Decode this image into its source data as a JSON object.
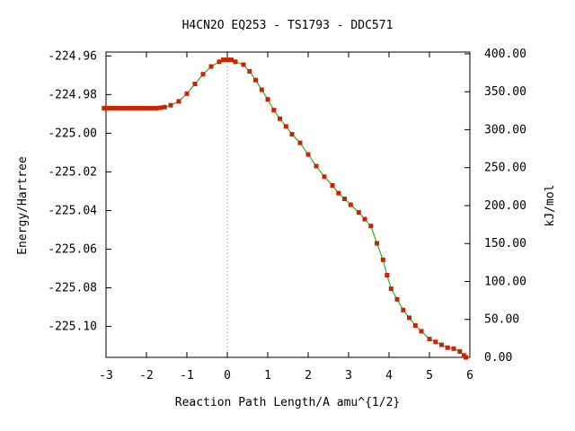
{
  "chart_data": {
    "type": "line",
    "title": "H4CN2O    EQ253 - TS1793 - DDC571",
    "xlabel": "Reaction Path Length/A amu^{1/2}",
    "ylabel": "Energy/Hartree",
    "y2label": "kJ/mol",
    "xlim": [
      -3,
      6
    ],
    "ylim": [
      -225.116,
      -224.958
    ],
    "y2lim": [
      0,
      402.3
    ],
    "x_ticks": [
      "-3",
      "-2",
      "-1",
      "0",
      "1",
      "2",
      "3",
      "4",
      "5",
      "6"
    ],
    "x_tick_values": [
      -3,
      -2,
      -1,
      0,
      1,
      2,
      3,
      4,
      5,
      6
    ],
    "y_ticks": [
      "-224.96",
      "-224.98",
      "-225.00",
      "-225.02",
      "-225.04",
      "-225.06",
      "-225.08",
      "-225.10"
    ],
    "y_tick_values": [
      -224.96,
      -224.98,
      -225.0,
      -225.02,
      -225.04,
      -225.06,
      -225.08,
      -225.1
    ],
    "y2_ticks": [
      "400.00",
      "350.00",
      "300.00",
      "250.00",
      "200.00",
      "150.00",
      "100.00",
      "50.00",
      "0.00"
    ],
    "y2_tick_values": [
      400,
      350,
      300,
      250,
      200,
      150,
      100,
      50,
      0
    ],
    "ts_marker_x": 0,
    "grid": false,
    "line_color": "#00aa00",
    "point_color": "#cc2200",
    "series": [
      {
        "x": [
          -3.05,
          -2.95,
          -2.85,
          -2.75,
          -2.65,
          -2.55,
          -2.45,
          -2.35,
          -2.25,
          -2.15,
          -2.05,
          -1.95,
          -1.85,
          -1.75,
          -1.65,
          -1.55,
          -1.4,
          -1.2,
          -1.0,
          -0.8,
          -0.6,
          -0.4,
          -0.2,
          -0.1,
          0.0,
          0.1,
          0.2,
          0.4,
          0.55,
          0.7,
          0.85,
          1.0,
          1.15,
          1.3,
          1.45,
          1.6,
          1.8,
          2.0,
          2.2,
          2.4,
          2.6,
          2.75,
          2.9,
          3.05,
          3.25,
          3.4,
          3.55,
          3.7,
          3.85,
          3.95,
          4.05,
          4.2,
          4.35,
          4.5,
          4.65,
          4.8,
          5.0,
          5.15,
          5.3,
          5.45,
          5.6,
          5.75,
          5.85,
          5.9
        ],
        "y": [
          -224.987,
          -224.987,
          -224.987,
          -224.987,
          -224.987,
          -224.987,
          -224.987,
          -224.987,
          -224.987,
          -224.987,
          -224.987,
          -224.987,
          -224.987,
          -224.987,
          -224.9868,
          -224.9865,
          -224.9855,
          -224.9835,
          -224.9795,
          -224.9745,
          -224.9695,
          -224.9655,
          -224.963,
          -224.962,
          -224.962,
          -224.962,
          -224.963,
          -224.9645,
          -224.968,
          -224.9725,
          -224.9775,
          -224.9825,
          -224.988,
          -224.9925,
          -224.9965,
          -225.0005,
          -225.005,
          -225.011,
          -225.017,
          -225.0225,
          -225.027,
          -225.031,
          -225.034,
          -225.037,
          -225.041,
          -225.0445,
          -225.048,
          -225.057,
          -225.0655,
          -225.0735,
          -225.0805,
          -225.086,
          -225.0915,
          -225.0955,
          -225.0995,
          -225.1025,
          -225.1065,
          -225.108,
          -225.1095,
          -225.111,
          -225.1115,
          -225.113,
          -225.115,
          -225.116
        ]
      }
    ]
  }
}
